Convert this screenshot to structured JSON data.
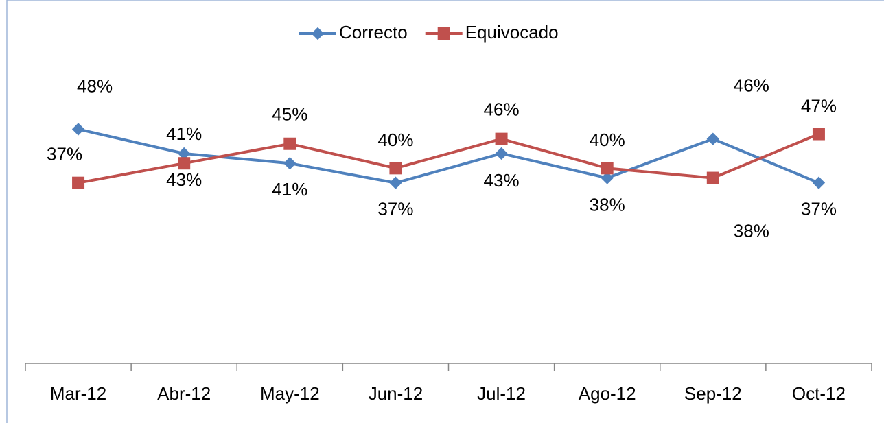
{
  "chart_data": {
    "type": "line",
    "categories": [
      "Mar-12",
      "Abr-12",
      "May-12",
      "Jun-12",
      "Jul-12",
      "Ago-12",
      "Sep-12",
      "Oct-12"
    ],
    "series": [
      {
        "name": "Correcto",
        "color": "#4f81bd",
        "values": [
          48,
          43,
          41,
          37,
          43,
          38,
          46,
          37
        ],
        "value_labels": [
          "48%",
          "43%",
          "41%",
          "37%",
          "43%",
          "38%",
          "46%",
          "37%"
        ]
      },
      {
        "name": "Equivocado",
        "color": "#c0504d",
        "values": [
          37,
          41,
          45,
          40,
          46,
          40,
          38,
          47
        ],
        "value_labels": [
          "37%",
          "41%",
          "45%",
          "40%",
          "46%",
          "40%",
          "38%",
          "47%"
        ]
      }
    ],
    "ylim": [
      0,
      60
    ],
    "legend": "top"
  }
}
